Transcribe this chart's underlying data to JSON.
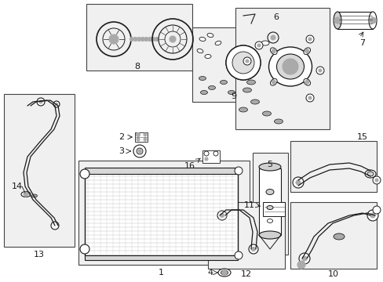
{
  "bg_color": "#ffffff",
  "line_color": "#1a1a1a",
  "gray_fill": "#aaaaaa",
  "dark_gray": "#555555",
  "fig_width": 4.89,
  "fig_height": 3.6,
  "dpi": 100
}
